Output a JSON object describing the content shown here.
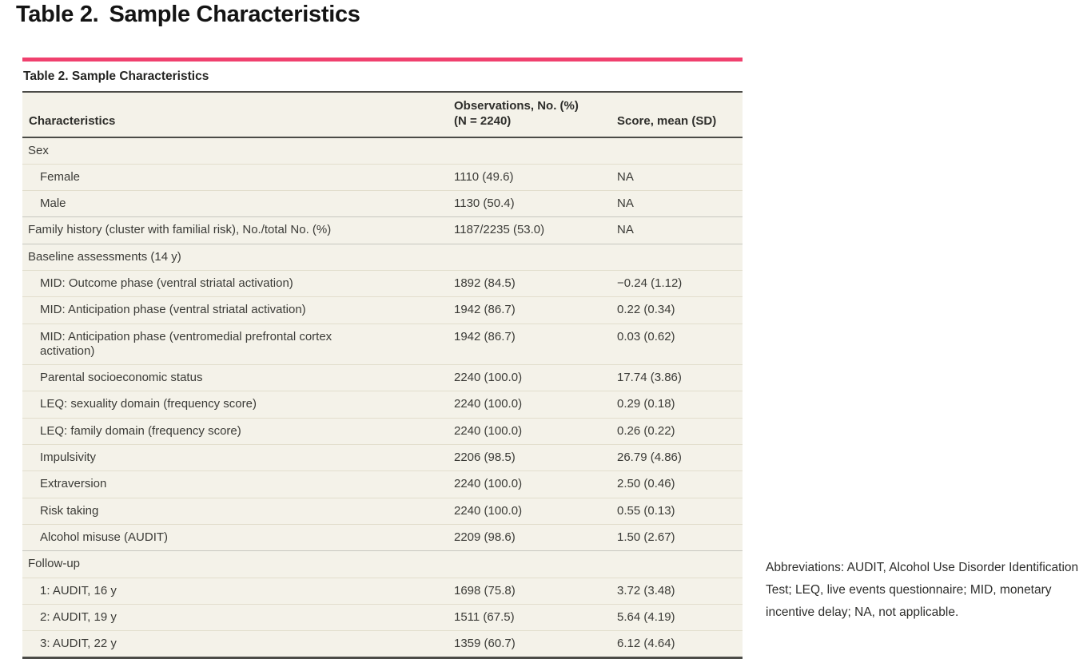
{
  "page": {
    "heading_prefix": "Table 2.",
    "heading": "Sample Characteristics"
  },
  "colors": {
    "accent_pink": "#f0406e",
    "table_background": "#f4f2e9",
    "dark_rule": "#4b4b47",
    "row_line": "#e2decd",
    "section_line": "#c7c7bf"
  },
  "table": {
    "title": "Table 2. Sample Characteristics",
    "columns": {
      "characteristics": "Characteristics",
      "observations": "Observations, No. (%)\n(N = 2240)",
      "score": "Score, mean (SD)"
    },
    "rows": [
      {
        "label": "Sex",
        "indent": false,
        "obs": "",
        "score": ""
      },
      {
        "label": "Female",
        "indent": true,
        "obs": "1110 (49.6)",
        "score": "NA"
      },
      {
        "label": "Male",
        "indent": true,
        "obs": "1130 (50.4)",
        "score": "NA"
      },
      {
        "label": "Family history (cluster with familial risk), No./total No. (%)",
        "indent": false,
        "obs": "1187/2235 (53.0)",
        "score": "NA"
      },
      {
        "label": "Baseline assessments (14 y)",
        "indent": false,
        "obs": "",
        "score": ""
      },
      {
        "label": "MID: Outcome phase (ventral striatal activation)",
        "indent": true,
        "obs": "1892 (84.5)",
        "score": "−0.24 (1.12)"
      },
      {
        "label": "MID: Anticipation phase (ventral striatal activation)",
        "indent": true,
        "obs": "1942 (86.7)",
        "score": "0.22 (0.34)"
      },
      {
        "label": "MID: Anticipation phase (ventromedial prefrontal cortex\nactivation)",
        "indent": true,
        "obs": "1942 (86.7)",
        "score": "0.03 (0.62)"
      },
      {
        "label": "Parental socioeconomic status",
        "indent": true,
        "obs": "2240 (100.0)",
        "score": "17.74 (3.86)"
      },
      {
        "label": "LEQ: sexuality domain (frequency score)",
        "indent": true,
        "obs": "2240 (100.0)",
        "score": "0.29 (0.18)"
      },
      {
        "label": "LEQ: family domain (frequency score)",
        "indent": true,
        "obs": "2240 (100.0)",
        "score": "0.26 (0.22)"
      },
      {
        "label": "Impulsivity",
        "indent": true,
        "obs": "2206 (98.5)",
        "score": "26.79 (4.86)"
      },
      {
        "label": "Extraversion",
        "indent": true,
        "obs": "2240 (100.0)",
        "score": "2.50 (0.46)"
      },
      {
        "label": "Risk taking",
        "indent": true,
        "obs": "2240 (100.0)",
        "score": "0.55 (0.13)"
      },
      {
        "label": "Alcohol misuse (AUDIT)",
        "indent": true,
        "obs": "2209 (98.6)",
        "score": "1.50 (2.67)"
      },
      {
        "label": "Follow-up",
        "indent": false,
        "obs": "",
        "score": ""
      },
      {
        "label": "1: AUDIT, 16 y",
        "indent": true,
        "obs": "1698 (75.8)",
        "score": "3.72 (3.48)"
      },
      {
        "label": "2: AUDIT, 19 y",
        "indent": true,
        "obs": "1511 (67.5)",
        "score": "5.64 (4.19)"
      },
      {
        "label": "3: AUDIT, 22 y",
        "indent": true,
        "obs": "1359 (60.7)",
        "score": "6.12 (4.64)"
      }
    ]
  },
  "footnote": {
    "text": "Abbreviations: AUDIT, Alcohol Use Disorder Identification Test; LEQ, live events questionnaire; MID, monetary incentive delay; NA, not applicable."
  }
}
